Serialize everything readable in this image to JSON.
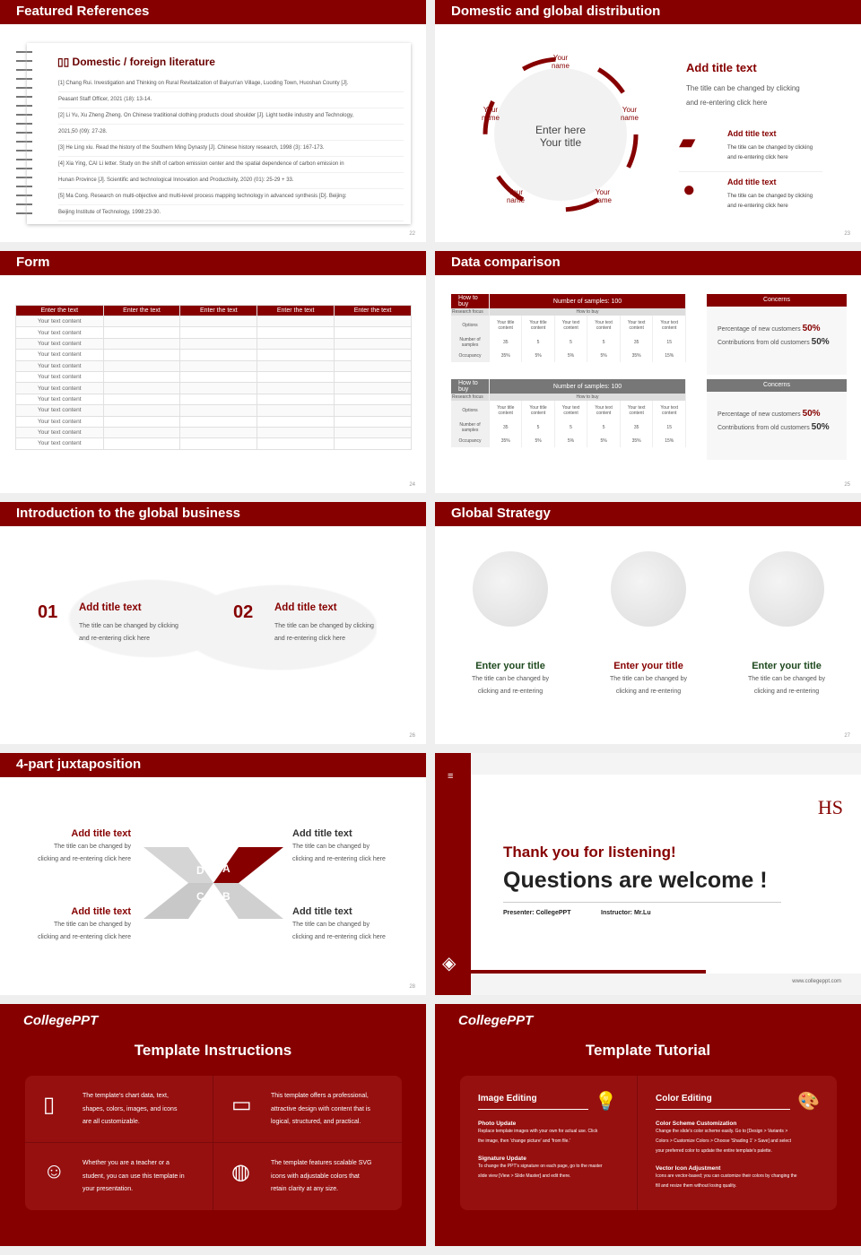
{
  "colors": {
    "accent": "#860000",
    "bg": "#efefef"
  },
  "s22": {
    "title": "Featured References",
    "heading": "Domestic / foreign literature",
    "icon": "book-icon",
    "page": "22",
    "refs": [
      "[1] Chang Rui. Investigation and Thinking on Rural Revitalization of Baiyun'an Village, Luoding Town, Huoshan County [J].",
      "Peasant Staff Officer, 2021 (18): 13-14.",
      "[2] Li Yu, Xu Zheng Zheng. On Chinese traditional clothing products cloud shoulder [J]. Light textile industry and Technology,",
      "2021,50 (09): 27-28.",
      "[3] He Ling xiu. Read the history of the Southern Ming Dynasty [J]. Chinese history research, 1998 (3): 167-173.",
      "[4] Xia Ying, CAI Li letter. Study on the shift of carbon emission center and the spatial dependence of carbon emission in",
      "Hunan Province [J]. Scientific and technological Innovation and Productivity, 2020 (01): 25-29 + 33.",
      "[5] Ma Cong. Research on multi-objective and multi-level process mapping technology in advanced synthesis [D]. Beijing:",
      "Beijing Institute of Technology, 1998:23-30."
    ]
  },
  "s23": {
    "title": "Domestic and global distribution",
    "center": [
      "Enter here",
      "Your title"
    ],
    "name": "Your name",
    "add_title": "Add title text",
    "desc": [
      "The title can be changed by clicking",
      "and re-entering click here"
    ],
    "items": [
      {
        "icon": "china-map-icon",
        "title": "Add title text",
        "text": [
          "The title can be changed by clicking",
          "and re-entering click here"
        ]
      },
      {
        "icon": "globe-icon",
        "title": "Add title text",
        "text": [
          "The title can be changed by clicking",
          "and re-entering click here"
        ]
      }
    ],
    "page": "23"
  },
  "s24": {
    "title": "Form",
    "headers": [
      "Enter the text",
      "Enter the text",
      "Enter the text",
      "Enter the text",
      "Enter the text"
    ],
    "cell": "Your text content",
    "rows": 12,
    "page": "24"
  },
  "s25": {
    "title": "Data comparison",
    "page": "25",
    "tables": [
      {
        "h1": "How to buy",
        "h2": "Number of samples: 100",
        "r1": [
          "Research focus",
          "How to buy"
        ],
        "options": "Options",
        "cols": [
          "Your title content",
          "Your title content",
          "Your text content",
          "Your text content",
          "Your text content",
          "Your text content"
        ],
        "samples_label": "Number of samples",
        "samples": [
          "35",
          "5",
          "5",
          "5",
          "35",
          "15"
        ],
        "occ_label": "Occupancy",
        "occ": [
          "35%",
          "5%",
          "5%",
          "5%",
          "35%",
          "15%"
        ]
      },
      {
        "h1": "How to buy",
        "h2": "Number of samples: 100",
        "r1": [
          "Research focus",
          "How to buy"
        ],
        "options": "Options",
        "cols": [
          "Your title content",
          "Your title content",
          "Your text content",
          "Your text content",
          "Your text content",
          "Your text content"
        ],
        "samples_label": "Number of samples",
        "samples": [
          "35",
          "5",
          "5",
          "5",
          "35",
          "15"
        ],
        "occ_label": "Occupancy",
        "occ": [
          "35%",
          "5%",
          "5%",
          "5%",
          "35%",
          "15%"
        ]
      }
    ],
    "concerns": {
      "title": "Concerns",
      "new_label": "Percentage of new customers",
      "new": "50%",
      "old_label": "Contributions from old customers",
      "old": "50%"
    }
  },
  "s26": {
    "title": "Introduction to the global business",
    "page": "26",
    "items": [
      {
        "num": "01",
        "title": "Add title text",
        "text": [
          "The title can be changed by clicking",
          "and re-entering click here"
        ]
      },
      {
        "num": "02",
        "title": "Add title text",
        "text": [
          "The title can be changed by clicking",
          "and re-entering click here"
        ]
      }
    ]
  },
  "s27": {
    "title": "Global Strategy",
    "page": "27",
    "items": [
      {
        "title": "Enter your title",
        "text": [
          "The title can be changed by",
          "clicking and re-entering"
        ]
      },
      {
        "title": "Enter your title",
        "text": [
          "The title can be changed by",
          "clicking and re-entering"
        ]
      },
      {
        "title": "Enter your title",
        "text": [
          "The title can be changed by",
          "clicking and re-entering"
        ]
      }
    ]
  },
  "s28": {
    "title": "4-part juxtaposition",
    "page": "28",
    "letters": [
      "D",
      "A",
      "C",
      "B"
    ],
    "items": [
      {
        "title": "Add title text",
        "text": [
          "The title can be changed by",
          "clicking and re-entering click here"
        ]
      },
      {
        "title": "Add title text",
        "text": [
          "The title can be changed by",
          "clicking and re-entering click here"
        ]
      },
      {
        "title": "Add title text",
        "text": [
          "The title can be changed by",
          "clicking and re-entering click here"
        ]
      },
      {
        "title": "Add title text",
        "text": [
          "The title can be changed by",
          "clicking and re-entering click here"
        ]
      }
    ]
  },
  "s29": {
    "thanks": "Thank you for listening!",
    "questions": "Questions are welcome !",
    "presenter": "Presenter: CollegePPT",
    "instructor": "Instructor: Mr.Lu",
    "url": "www.collegeppt.com"
  },
  "s30": {
    "logo": "CollegePPT",
    "title": "Template Instructions",
    "items": [
      {
        "icon": "document-icon",
        "text": [
          "The template's chart data, text,",
          "shapes, colors, images, and icons",
          "are all customizable."
        ]
      },
      {
        "icon": "layers-icon",
        "text": [
          "This template offers a professional,",
          "attractive design with content that is",
          "logical, structured, and practical."
        ]
      },
      {
        "icon": "teacher-icon",
        "text": [
          "Whether you are a teacher or a",
          "student, you can use this template in",
          "your presentation."
        ]
      },
      {
        "icon": "basketball-icon",
        "text": [
          "The template features scalable SVG",
          "icons with adjustable colors that",
          "retain clarity at any size."
        ]
      }
    ]
  },
  "s31": {
    "logo": "CollegePPT",
    "title": "Template Tutorial",
    "left": {
      "title": "Image Editing",
      "icon": "lightbulb-icon",
      "sections": [
        {
          "h": "Photo Update",
          "t": [
            "Replace template images with your own for actual use. Click",
            "the image, then 'change picture' and 'from file.'"
          ]
        },
        {
          "h": "Signature Update",
          "t": [
            "To change the PPT's signature on each page, go to the master",
            "slide view [View > Slide Master] and edit there."
          ]
        }
      ]
    },
    "right": {
      "title": "Color Editing",
      "icon": "palette-icon",
      "sections": [
        {
          "h": "Color Scheme Customization",
          "t": [
            "Change the slide's color scheme easily. Go to [Design > Variants >",
            "Colors > Customize Colors > Choose 'Shading 1' > Save] and select",
            "your preferred color to update the entire template's palette."
          ]
        },
        {
          "h": "Vector Icon Adjustment",
          "t": [
            "Icons are vector-based; you can customize their colors by changing the",
            "fill and resize them without losing quality."
          ]
        }
      ]
    }
  }
}
